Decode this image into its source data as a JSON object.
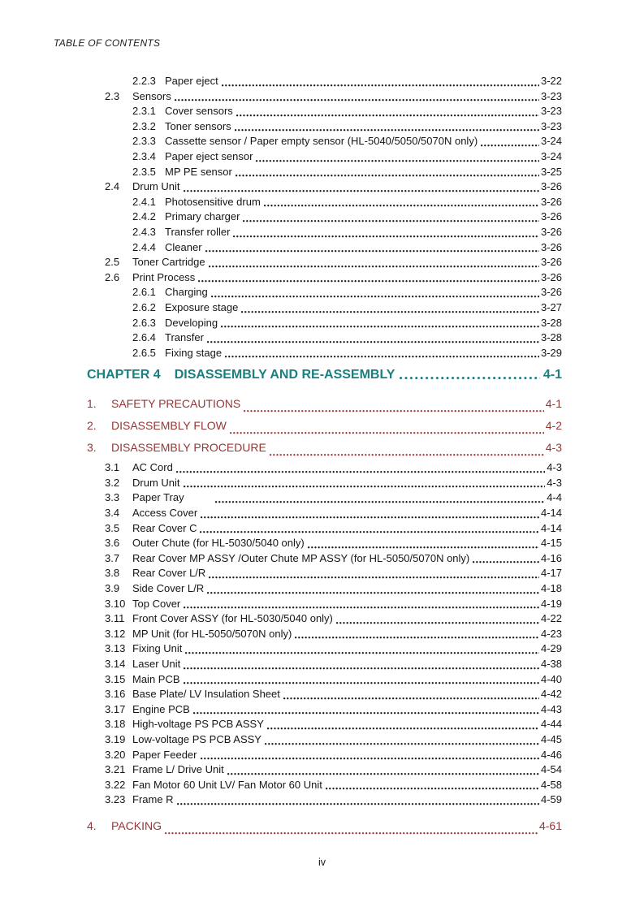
{
  "page": {
    "header": "TABLE OF CONTENTS",
    "footer_page_label": "iv"
  },
  "colors": {
    "body_text": "#161616",
    "chapter_teal": "#1a7f7f",
    "section_maroon": "#943634",
    "background": "#ffffff"
  },
  "toc": {
    "continued_entries": [
      {
        "level": 3,
        "num": "2.2.3",
        "label": "Paper eject",
        "page": "3-22"
      },
      {
        "level": 2,
        "num": "2.3",
        "label": "Sensors",
        "page": "3-23"
      },
      {
        "level": 3,
        "num": "2.3.1",
        "label": "Cover sensors",
        "page": "3-23"
      },
      {
        "level": 3,
        "num": "2.3.2",
        "label": "Toner sensors",
        "page": "3-23"
      },
      {
        "level": 3,
        "num": "2.3.3",
        "label": "Cassette sensor / Paper empty sensor (HL-5040/5050/5070N only)",
        "page": "3-24"
      },
      {
        "level": 3,
        "num": "2.3.4",
        "label": "Paper eject sensor",
        "page": "3-24"
      },
      {
        "level": 3,
        "num": "2.3.5",
        "label": "MP PE sensor",
        "page": "3-25"
      },
      {
        "level": 2,
        "num": "2.4",
        "label": "Drum Unit",
        "page": "3-26"
      },
      {
        "level": 3,
        "num": "2.4.1",
        "label": "Photosensitive drum",
        "page": "3-26"
      },
      {
        "level": 3,
        "num": "2.4.2",
        "label": "Primary charger",
        "page": "3-26"
      },
      {
        "level": 3,
        "num": "2.4.3",
        "label": "Transfer roller",
        "page": "3-26"
      },
      {
        "level": 3,
        "num": "2.4.4",
        "label": "Cleaner",
        "page": "3-26"
      },
      {
        "level": 2,
        "num": "2.5",
        "label": "Toner Cartridge",
        "page": "3-26"
      },
      {
        "level": 2,
        "num": "2.6",
        "label": "Print Process",
        "page": "3-26"
      },
      {
        "level": 3,
        "num": "2.6.1",
        "label": "Charging",
        "page": "3-26"
      },
      {
        "level": 3,
        "num": "2.6.2",
        "label": "Exposure stage",
        "page": "3-27"
      },
      {
        "level": 3,
        "num": "2.6.3",
        "label": "Developing",
        "page": "3-28"
      },
      {
        "level": 3,
        "num": "2.6.4",
        "label": "Transfer",
        "page": "3-28"
      },
      {
        "level": 3,
        "num": "2.6.5",
        "label": "Fixing stage",
        "page": "3-29"
      }
    ],
    "chapter4": {
      "num": "CHAPTER 4",
      "title": "DISASSEMBLY AND RE-ASSEMBLY",
      "page": "4-1"
    },
    "chapter4_sections": [
      {
        "num": "1.",
        "label": "SAFETY PRECAUTIONS",
        "page": "4-1"
      },
      {
        "num": "2.",
        "label": "DISASSEMBLY FLOW",
        "page": "4-2"
      },
      {
        "num": "3.",
        "label": "DISASSEMBLY PROCEDURE",
        "page": "4-3",
        "subentries": [
          {
            "num": "3.1",
            "label": "AC Cord",
            "page": "4-3"
          },
          {
            "num": "3.2",
            "label": "Drum Unit",
            "page": "4-3"
          },
          {
            "num": "3.3",
            "label": "Paper Tray",
            "page": "4-4",
            "gap": true
          },
          {
            "num": "3.4",
            "label": "Access Cover",
            "page": "4-14"
          },
          {
            "num": "3.5",
            "label": "Rear Cover C",
            "page": "4-14"
          },
          {
            "num": "3.6",
            "label": "Outer Chute (for HL-5030/5040 only)",
            "page": "4-15"
          },
          {
            "num": "3.7",
            "label": "Rear Cover MP ASSY /Outer Chute MP ASSY (for HL-5050/5070N only)",
            "page": "4-16"
          },
          {
            "num": "3.8",
            "label": "Rear Cover L/R",
            "page": "4-17"
          },
          {
            "num": "3.9",
            "label": "Side Cover L/R",
            "page": "4-18"
          },
          {
            "num": "3.10",
            "label": "Top Cover",
            "page": "4-19"
          },
          {
            "num": "3.11",
            "label": "Front Cover ASSY (for HL-5030/5040 only)",
            "page": "4-22"
          },
          {
            "num": "3.12",
            "label": "MP Unit (for HL-5050/5070N only)",
            "page": "4-23"
          },
          {
            "num": "3.13",
            "label": "Fixing Unit",
            "page": "4-29"
          },
          {
            "num": "3.14",
            "label": "Laser Unit",
            "page": "4-38"
          },
          {
            "num": "3.15",
            "label": "Main PCB",
            "page": "4-40"
          },
          {
            "num": "3.16",
            "label": "Base Plate/ LV Insulation Sheet",
            "page": "4-42"
          },
          {
            "num": "3.17",
            "label": "Engine PCB",
            "page": "4-43"
          },
          {
            "num": "3.18",
            "label": "High-voltage PS PCB ASSY",
            "page": "4-44"
          },
          {
            "num": "3.19",
            "label": "Low-voltage PS PCB ASSY",
            "page": "4-45"
          },
          {
            "num": "3.20",
            "label": "Paper Feeder",
            "page": "4-46"
          },
          {
            "num": "3.21",
            "label": "Frame L/ Drive Unit",
            "page": "4-54"
          },
          {
            "num": "3.22",
            "label": "Fan Motor 60 Unit LV/ Fan Motor 60 Unit",
            "page": "4-58"
          },
          {
            "num": "3.23",
            "label": "Frame R",
            "page": "4-59"
          }
        ]
      },
      {
        "num": "4.",
        "label": "PACKING",
        "page": "4-61"
      }
    ]
  }
}
